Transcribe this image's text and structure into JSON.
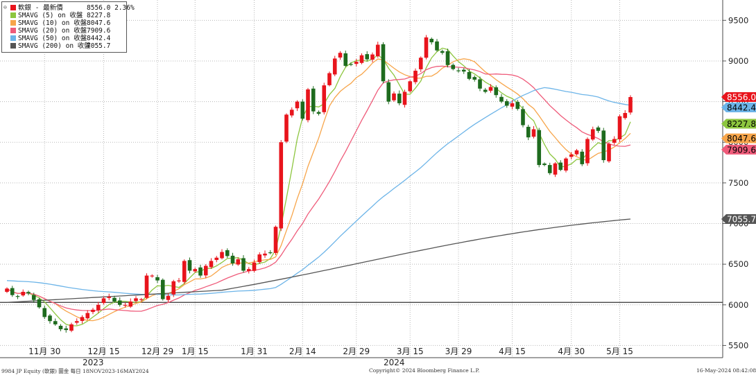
{
  "legend": {
    "items": [
      {
        "label": "軟銀 - 最新價",
        "value": "8556.0",
        "extra": "2.36%",
        "color": "#e8141c"
      },
      {
        "label": "SMAVG (5)  on 收盤",
        "value": "8227.8",
        "color": "#8dc63f"
      },
      {
        "label": "SMAVG (10)  on 收盤",
        "value": "8047.6",
        "color": "#f7a54a"
      },
      {
        "label": "SMAVG (20)  on 收盤",
        "value": "7909.6",
        "color": "#ef5b7a"
      },
      {
        "label": "SMAVG (50)  on 收盤",
        "value": "8442.4",
        "color": "#6cb4e8"
      },
      {
        "label": "SMAVG (200)  on 收盤",
        "value": "7055.7",
        "color": "#555555"
      }
    ]
  },
  "footer": {
    "left": "9984 JP Equity (軟銀) 圖金  每日 18NOV2023-16MAY2024",
    "center": "Copyright© 2024 Bloomberg Finance L.P.",
    "right": "16-May-2024 08:42:08"
  },
  "chart_data": {
    "type": "candlestick",
    "ylim": [
      5350,
      9750
    ],
    "yticks": [
      5500,
      6000,
      6500,
      7000,
      7500,
      8000,
      8500,
      9000,
      9500
    ],
    "x_ticks": [
      {
        "label": "11月 30",
        "i": 7
      },
      {
        "label": "12月 15",
        "i": 18
      },
      {
        "label": "12月 29",
        "i": 28
      },
      {
        "label": "1月 15",
        "i": 35
      },
      {
        "label": "1月 31",
        "i": 46
      },
      {
        "label": "2月 14",
        "i": 55
      },
      {
        "label": "2月 29",
        "i": 65
      },
      {
        "label": "3月 15",
        "i": 75
      },
      {
        "label": "3月 29",
        "i": 84
      },
      {
        "label": "4月 15",
        "i": 94
      },
      {
        "label": "4月 30",
        "i": 105
      },
      {
        "label": "5月 15",
        "i": 114
      }
    ],
    "year_labels": [
      {
        "label": "2023",
        "i": 15
      },
      {
        "label": "2024",
        "i": 71
      }
    ],
    "reference_line": 6030,
    "last_value_labels": [
      {
        "text": "8556.0",
        "value": 8556.0,
        "bg": "#e8141c",
        "fg": "#ffffff"
      },
      {
        "text": "8442.4",
        "value": 8442.4,
        "bg": "#6cb4e8",
        "fg": "#000000"
      },
      {
        "text": "8227.8",
        "value": 8227.8,
        "bg": "#8dc63f",
        "fg": "#000000"
      },
      {
        "text": "8047.6",
        "value": 8047.6,
        "bg": "#f7a54a",
        "fg": "#000000"
      },
      {
        "text": "7909.6",
        "value": 7909.6,
        "bg": "#ef5b7a",
        "fg": "#000000"
      },
      {
        "text": "7055.7",
        "value": 7055.7,
        "bg": "#555555",
        "fg": "#ffffff"
      }
    ],
    "closes": [
      6200,
      6120,
      6100,
      6160,
      6140,
      6060,
      5970,
      5850,
      5800,
      5760,
      5700,
      5690,
      5760,
      5800,
      5850,
      5900,
      5940,
      6000,
      6080,
      6100,
      6040,
      6000,
      6000,
      6040,
      6080,
      6070,
      6360,
      6360,
      6300,
      6070,
      6110,
      6290,
      6300,
      6540,
      6420,
      6440,
      6360,
      6480,
      6540,
      6580,
      6650,
      6600,
      6510,
      6560,
      6420,
      6440,
      6520,
      6620,
      6630,
      6640,
      6960,
      8000,
      8340,
      8400,
      8500,
      8290,
      8650,
      8380,
      8350,
      8700,
      8850,
      9030,
      9100,
      8940,
      8960,
      8990,
      9070,
      9020,
      9080,
      9200,
      8750,
      8500,
      8600,
      8480,
      8620,
      8750,
      8880,
      9040,
      9290,
      9230,
      9130,
      9100,
      8950,
      8900,
      8880,
      8870,
      8780,
      8770,
      8660,
      8620,
      8680,
      8580,
      8500,
      8450,
      8480,
      8410,
      8210,
      8060,
      8160,
      7720,
      7720,
      7620,
      7740,
      7660,
      7800,
      7850,
      7900,
      7730,
      8040,
      8160,
      8140,
      7780,
      7980,
      8040,
      8320,
      8360,
      8556
    ],
    "series": [
      {
        "name": "SMAVG (5)",
        "period": 5,
        "color": "#8dc63f"
      },
      {
        "name": "SMAVG (10)",
        "period": 10,
        "color": "#f7a54a"
      },
      {
        "name": "SMAVG (20)",
        "period": 20,
        "color": "#ef5b7a"
      },
      {
        "name": "SMAVG (50)",
        "period": 50,
        "color": "#6cb4e8",
        "anchor_start": 6300
      },
      {
        "name": "SMAVG (200)",
        "period": 200,
        "color": "#555555",
        "linear_from": 5970,
        "linear_to": 7055.7
      }
    ]
  }
}
